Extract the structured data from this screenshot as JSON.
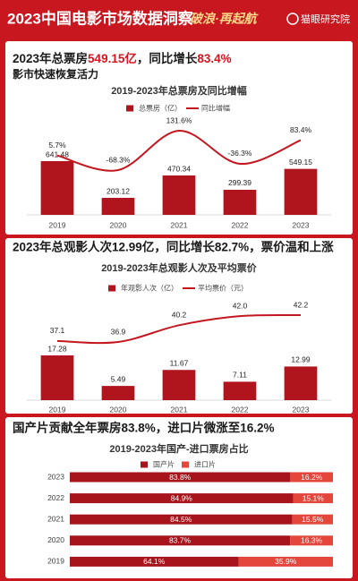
{
  "header": {
    "title": "2023中国电影市场数据洞察",
    "slogan": "破浪·再起航",
    "brand": "猫眼研究院"
  },
  "headlines": [
    [
      "2023年总票房",
      "549.15亿",
      "，同比增长",
      "83.4%"
    ],
    [
      "2023年总观影人次12.99亿，同比增长82.7%，票价温和上涨"
    ],
    [
      "国产片贡献全年票房83.8%，进口片微涨至16.2%"
    ]
  ],
  "subline": "影市快速恢复活力",
  "chart_data": [
    {
      "type": "combo",
      "title": "2019-2023年总票房及同比增幅",
      "categories": [
        "2019",
        "2020",
        "2021",
        "2022",
        "2023"
      ],
      "series": [
        {
          "name": "总票房（亿）",
          "kind": "bar",
          "color": "#b0141c",
          "values": [
            641.48,
            203.12,
            470.34,
            299.39,
            549.15
          ]
        },
        {
          "name": "同比增幅",
          "kind": "line",
          "color": "#c4161e",
          "values": [
            5.7,
            -68.3,
            131.6,
            -36.3,
            83.4
          ],
          "value_labels": [
            "5.7%",
            "-68.3%",
            "131.6%",
            "-36.3%",
            "83.4%"
          ]
        }
      ]
    },
    {
      "type": "combo",
      "title": "2019-2023年总观影人次及平均票价",
      "categories": [
        "2019",
        "2020",
        "2021",
        "2022",
        "2023"
      ],
      "series": [
        {
          "name": "年观影人次（亿）",
          "kind": "bar",
          "color": "#b0141c",
          "values": [
            17.28,
            5.49,
            11.67,
            7.11,
            12.99
          ]
        },
        {
          "name": "平均票价（元）",
          "kind": "line",
          "color": "#c4161e",
          "values": [
            37.1,
            36.9,
            40.2,
            42.0,
            42.2
          ],
          "value_labels": [
            "37.1",
            "36.9",
            "40.2",
            "42.0",
            "42.2"
          ]
        }
      ]
    },
    {
      "type": "barh",
      "title": "2019-2023年国产-进口票房占比",
      "stacked": true,
      "categories": [
        "2023",
        "2022",
        "2021",
        "2020",
        "2019"
      ],
      "series": [
        {
          "name": "国产片",
          "color": "#a8141b",
          "values": [
            83.8,
            84.9,
            84.5,
            83.7,
            64.1
          ],
          "value_labels": [
            "83.8%",
            "84.9%",
            "84.5%",
            "83.7%",
            "64.1%"
          ]
        },
        {
          "name": "进口片",
          "color": "#e4463b",
          "values": [
            16.2,
            15.1,
            15.5,
            16.3,
            35.9
          ],
          "value_labels": [
            "16.2%",
            "15.1%",
            "15.5%",
            "16.3%",
            "35.9%"
          ]
        }
      ]
    }
  ]
}
